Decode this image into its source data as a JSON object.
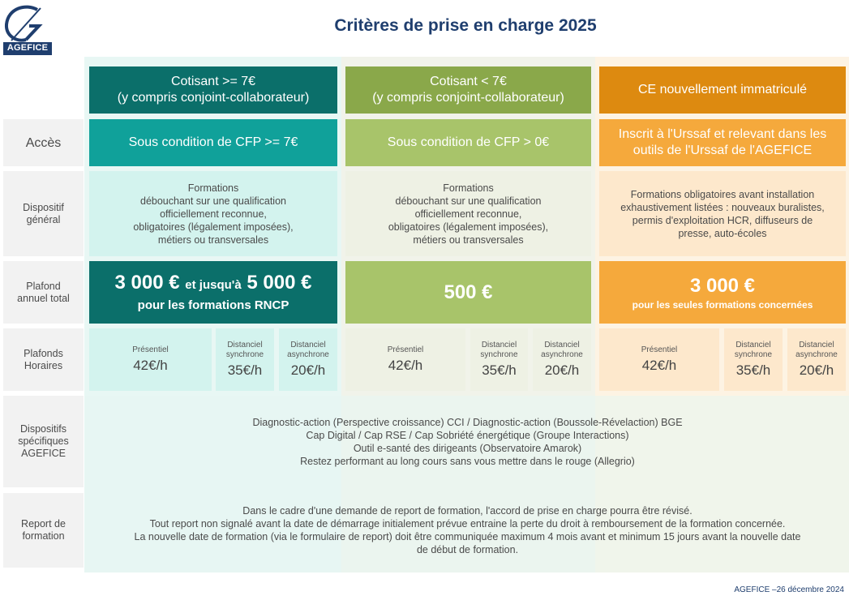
{
  "logo": {
    "text": "AGEFICE"
  },
  "title": "Critères de prise en charge 2025",
  "columns": [
    {
      "line1": "Cotisant >= 7€",
      "line2": "(y compris conjoint-collaborateur)"
    },
    {
      "line1": "Cotisant < 7€",
      "line2": "(y compris conjoint-collaborateur)"
    },
    {
      "line1": "CE nouvellement immatriculé"
    }
  ],
  "rows": {
    "acces": {
      "label": "Accès",
      "values": [
        "Sous condition de CFP >= 7€",
        "Sous condition de CFP > 0€",
        "Inscrit à l'Urssaf et relevant dans les outils de l'Urssaf de l'AGEFICE"
      ]
    },
    "dispositif": {
      "label_l1": "Dispositif",
      "label_l2": "général",
      "col1": [
        "Formations",
        "débouchant sur une qualification",
        "officiellement reconnue,",
        "obligatoires (légalement imposées),",
        "métiers ou transversales"
      ],
      "col2": [
        "Formations",
        "débouchant sur une qualification",
        "officiellement reconnue,",
        "obligatoires (légalement imposées),",
        "métiers ou transversales"
      ],
      "col3": [
        "Formations obligatoires avant installation",
        "exhaustivement listées : nouveaux buralistes,",
        "permis d'exploitation HCR, diffuseurs de",
        "presse, auto-écoles"
      ]
    },
    "plafond": {
      "label_l1": "Plafond",
      "label_l2": "annuel total",
      "col1_amount1": "3 000 €",
      "col1_mid": "et jusqu'à",
      "col1_amount2": "5 000 €",
      "col1_sub": "pour les formations RNCP",
      "col2_amount": "500 €",
      "col3_amount": "3 000 €",
      "col3_sub": "pour les seules formations concernées"
    },
    "horaires": {
      "label_l1": "Plafonds",
      "label_l2": "Horaires",
      "presentiel": "Présentiel",
      "distanciel": "Distanciel",
      "synchrone": "synchrone",
      "asynchrone": "asynchrone",
      "rates": [
        "42€/h",
        "35€/h",
        "20€/h"
      ]
    },
    "specifiques": {
      "label_l1": "Dispositifs",
      "label_l2": "spécifiques",
      "label_l3": "AGEFICE",
      "lines": [
        "Diagnostic-action (Perspective croissance) CCI / Diagnostic-action (Boussole-Révelaction) BGE",
        "Cap Digital / Cap RSE / Cap Sobriété énergétique (Groupe Interactions)",
        "Outil e-santé des dirigeants (Observatoire Amarok)",
        "Restez performant au long cours sans vous mettre dans le rouge (Allegrio)"
      ]
    },
    "report": {
      "label_l1": "Report de",
      "label_l2": "formation",
      "lines": [
        "Dans le cadre d'une demande de report de formation, l'accord de prise en charge pourra être révisé.",
        "Tout report non signalé avant la date de démarrage initialement prévue entraine la perte du droit à remboursement de la formation concernée.",
        "La nouvelle date de formation (via le formulaire de report) doit être communiquée maximum 4 mois avant et minimum 15 jours avant la nouvelle date",
        "de début de formation."
      ]
    }
  },
  "footer": "AGEFICE –26 décembre 2024",
  "colors": {
    "title": "#1f3e6e",
    "teal_dark": "#0b6f6a",
    "teal": "#10a19a",
    "olive": "#8aa84a",
    "green": "#a8c46a",
    "orange_dark": "#dd8a10",
    "orange": "#f5a93c"
  }
}
